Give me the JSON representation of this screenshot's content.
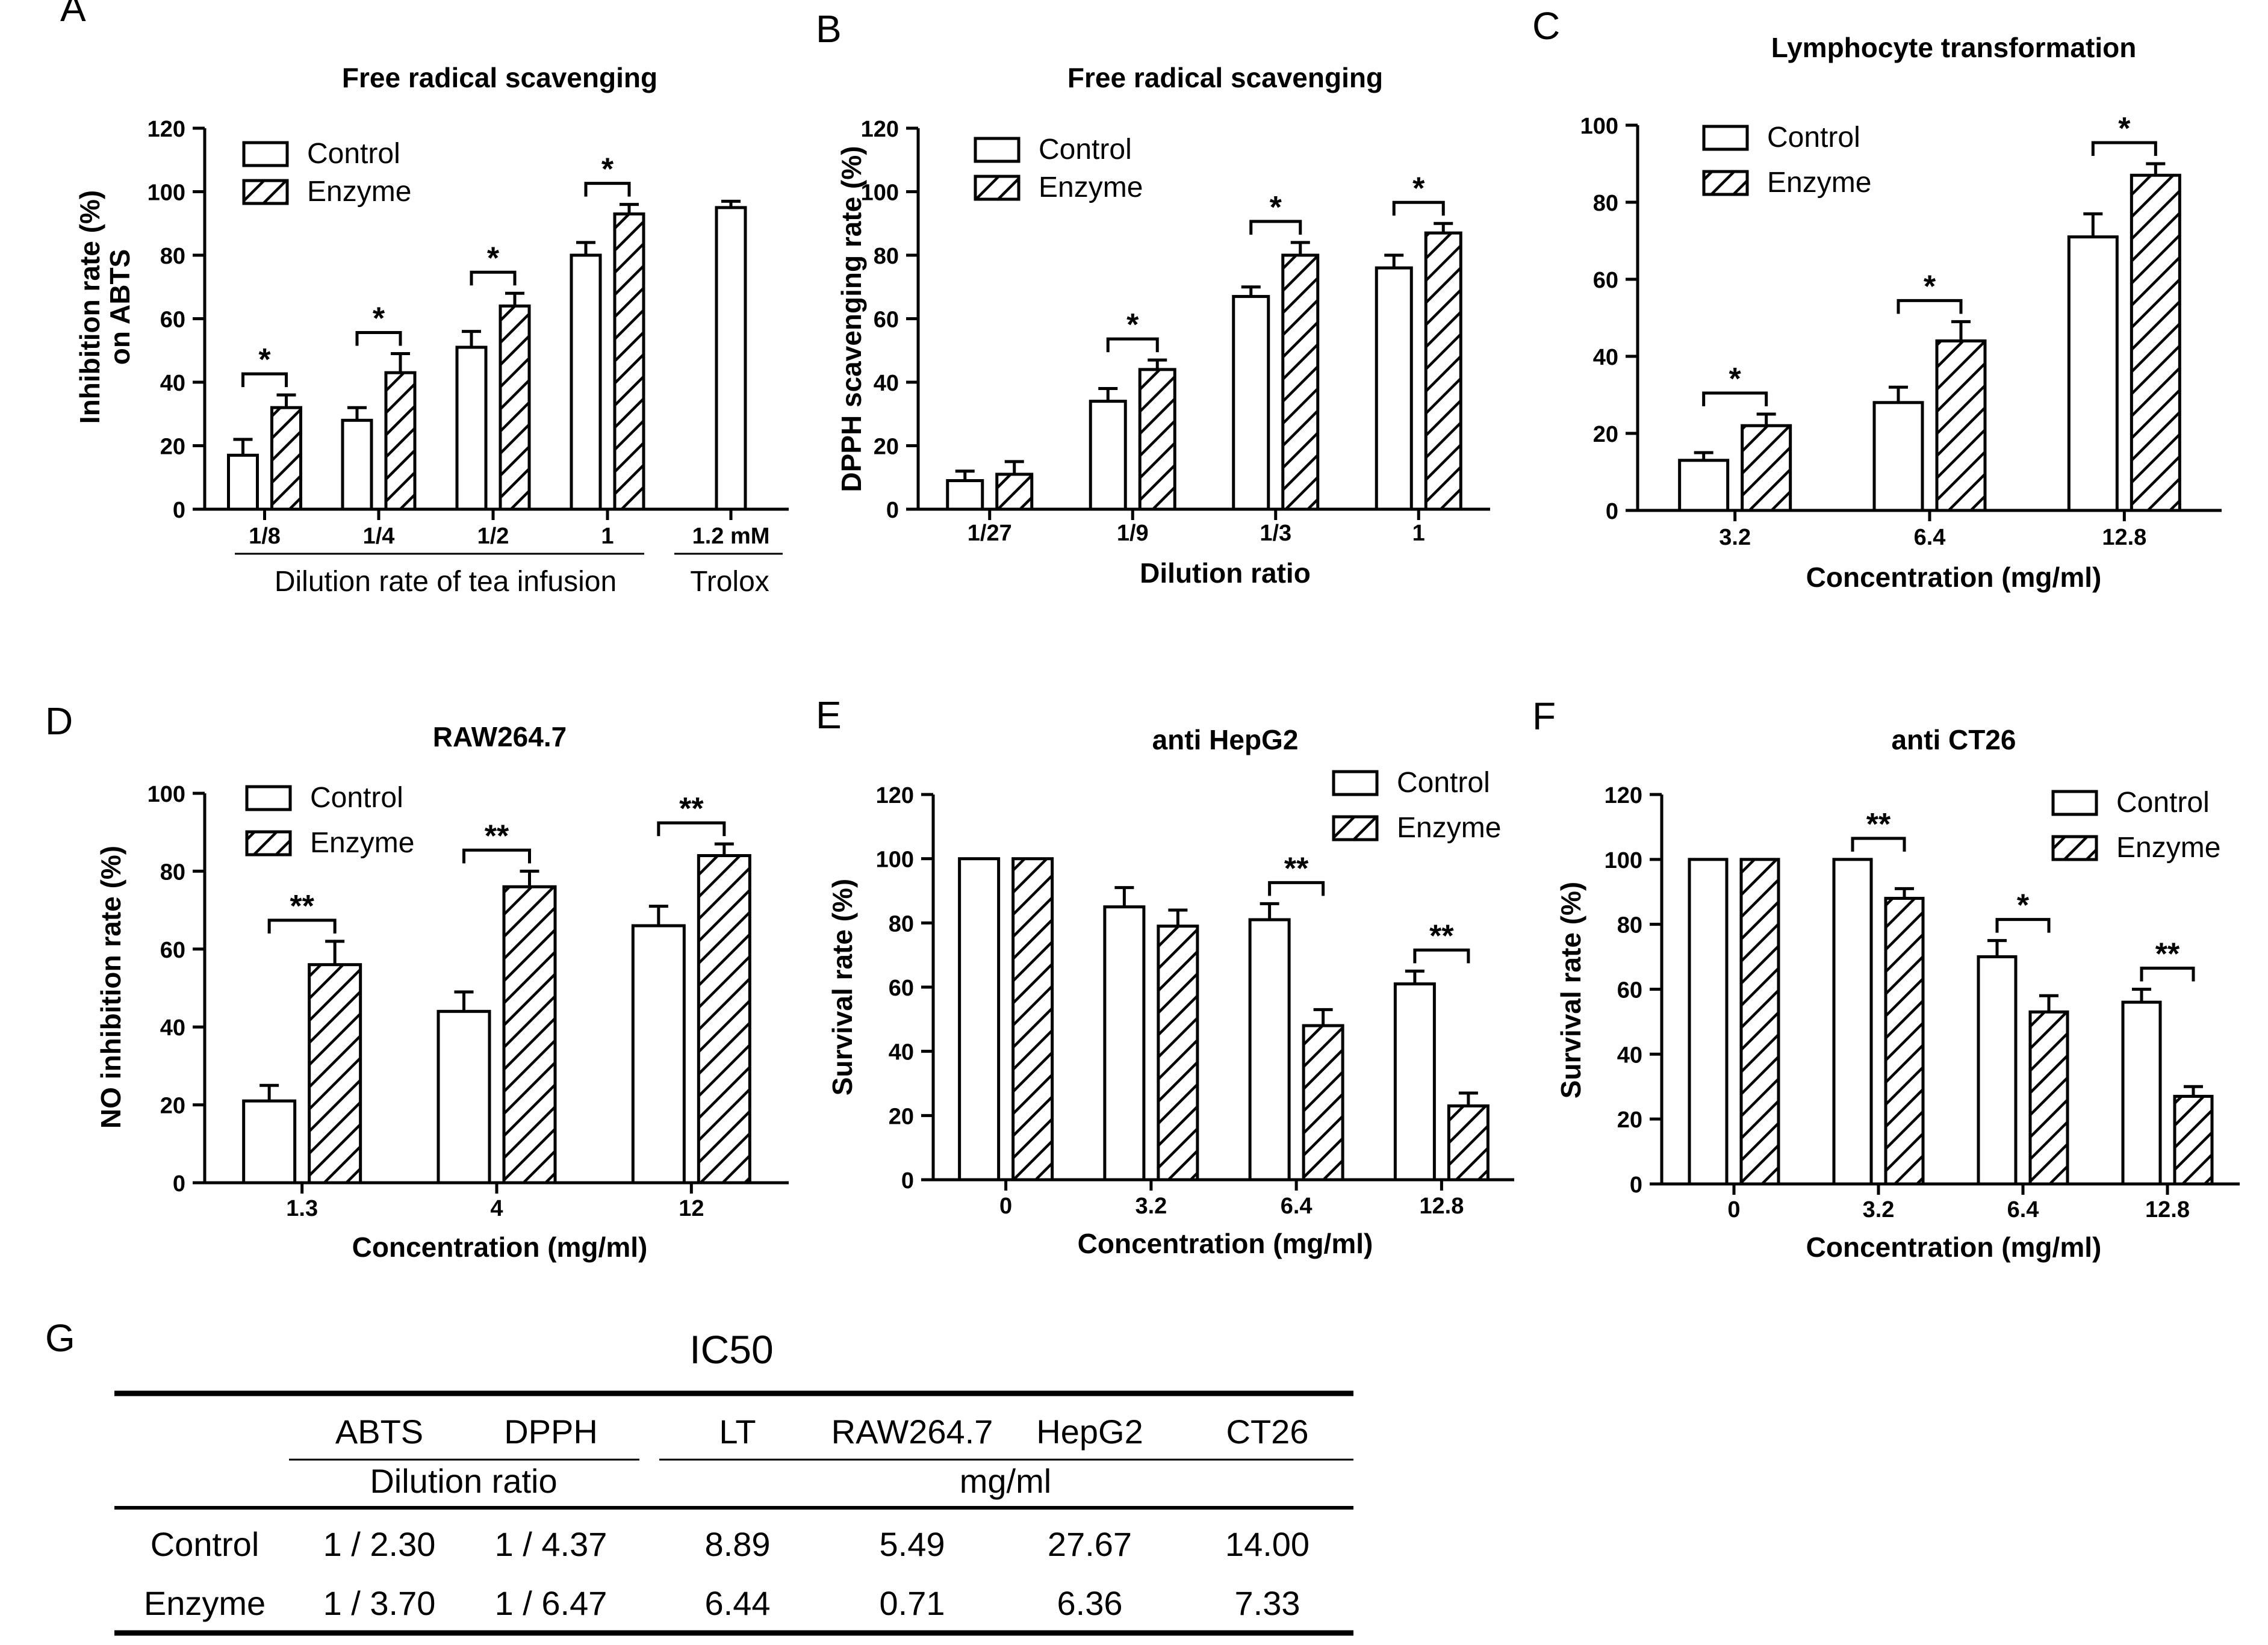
{
  "table": {
    "panel_label": "G",
    "title": "IC50",
    "columns": [
      "ABTS",
      "DPPH",
      "LT",
      "RAW264.7",
      "HepG2",
      "CT26"
    ],
    "group_labels": [
      "Dilution ratio",
      "mg/ml"
    ],
    "rows": [
      {
        "label": "Control",
        "values": [
          "1 / 2.30",
          "1 / 4.37",
          "8.89",
          "5.49",
          "27.67",
          "14.00"
        ]
      },
      {
        "label": "Enzyme",
        "values": [
          "1 / 3.70",
          "1 / 6.47",
          "6.44",
          "0.71",
          "6.36",
          "7.33"
        ]
      }
    ]
  },
  "chart_data": [
    {
      "panel": "A",
      "type": "bar",
      "title": "Free radical scavenging",
      "ylabel": "Inhibition rate (%)",
      "ylabel2": "on ABTS",
      "xlabel": "Dilution rate of tea infusion",
      "xlabel2": "Trolox",
      "categories": [
        "1/8",
        "1/4",
        "1/2",
        "1",
        "1.2 mM"
      ],
      "ylim": [
        0,
        120
      ],
      "yticks": [
        0,
        20,
        40,
        60,
        80,
        100,
        120
      ],
      "legend": "top-left",
      "series": [
        {
          "name": "Control",
          "values": [
            17,
            28,
            51,
            80,
            95
          ],
          "errors": [
            5,
            4,
            5,
            4,
            2
          ]
        },
        {
          "name": "Enzyme",
          "values": [
            32,
            43,
            64,
            93,
            null
          ],
          "errors": [
            4,
            6,
            4,
            3,
            null
          ]
        }
      ],
      "annotations": [
        "*",
        "*",
        "*",
        "*",
        ""
      ]
    },
    {
      "panel": "B",
      "type": "bar",
      "title": "Free radical scavenging",
      "ylabel": "DPPH scavenging rate (%)",
      "xlabel": "Dilution ratio",
      "categories": [
        "1/27",
        "1/9",
        "1/3",
        "1"
      ],
      "ylim": [
        0,
        120
      ],
      "yticks": [
        0,
        20,
        40,
        60,
        80,
        100,
        120
      ],
      "legend": "top-left",
      "series": [
        {
          "name": "Control",
          "values": [
            9,
            34,
            67,
            76
          ],
          "errors": [
            3,
            4,
            3,
            4
          ]
        },
        {
          "name": "Enzyme",
          "values": [
            11,
            44,
            80,
            87
          ],
          "errors": [
            4,
            3,
            4,
            3
          ]
        }
      ],
      "annotations": [
        "",
        "*",
        "*",
        "*"
      ]
    },
    {
      "panel": "C",
      "type": "bar",
      "title": "Lymphocyte transformation",
      "ylabel": "",
      "xlabel": "Concentration (mg/ml)",
      "categories": [
        "3.2",
        "6.4",
        "12.8"
      ],
      "ylim": [
        0,
        100
      ],
      "yticks": [
        0,
        20,
        40,
        60,
        80,
        100
      ],
      "legend": "top-left",
      "series": [
        {
          "name": "Control",
          "values": [
            13,
            28,
            71
          ],
          "errors": [
            2,
            4,
            6
          ]
        },
        {
          "name": "Enzyme",
          "values": [
            22,
            44,
            87
          ],
          "errors": [
            3,
            5,
            3
          ]
        }
      ],
      "annotations": [
        "*",
        "*",
        "*"
      ]
    },
    {
      "panel": "D",
      "type": "bar",
      "title": "RAW264.7",
      "ylabel": "NO inhibition rate (%)",
      "xlabel": "Concentration (mg/ml)",
      "categories": [
        "1.3",
        "4",
        "12"
      ],
      "ylim": [
        0,
        100
      ],
      "yticks": [
        0,
        20,
        40,
        60,
        80,
        100
      ],
      "legend": "top-left",
      "series": [
        {
          "name": "Control",
          "values": [
            21,
            44,
            66
          ],
          "errors": [
            4,
            5,
            5
          ]
        },
        {
          "name": "Enzyme",
          "values": [
            56,
            76,
            84
          ],
          "errors": [
            6,
            4,
            3
          ]
        }
      ],
      "annotations": [
        "**",
        "**",
        "**"
      ]
    },
    {
      "panel": "E",
      "type": "bar",
      "title": "anti HepG2",
      "ylabel": "Survival rate (%)",
      "xlabel": "Concentration (mg/ml)",
      "categories": [
        "0",
        "3.2",
        "6.4",
        "12.8"
      ],
      "ylim": [
        0,
        120
      ],
      "yticks": [
        0,
        20,
        40,
        60,
        80,
        100,
        120
      ],
      "legend": "top-right",
      "series": [
        {
          "name": "Control",
          "values": [
            100,
            85,
            81,
            61
          ],
          "errors": [
            0,
            6,
            5,
            4
          ]
        },
        {
          "name": "Enzyme",
          "values": [
            100,
            79,
            48,
            23
          ],
          "errors": [
            0,
            5,
            5,
            4
          ]
        }
      ],
      "annotations": [
        "",
        "",
        "**",
        "**"
      ]
    },
    {
      "panel": "F",
      "type": "bar",
      "title": "anti CT26",
      "ylabel": "Survival rate (%)",
      "xlabel": "Concentration (mg/ml)",
      "categories": [
        "0",
        "3.2",
        "6.4",
        "12.8"
      ],
      "ylim": [
        0,
        120
      ],
      "yticks": [
        0,
        20,
        40,
        60,
        80,
        100,
        120
      ],
      "legend": "top-right",
      "series": [
        {
          "name": "Control",
          "values": [
            100,
            100,
            70,
            56
          ],
          "errors": [
            0,
            0,
            5,
            4
          ]
        },
        {
          "name": "Enzyme",
          "values": [
            100,
            88,
            53,
            27
          ],
          "errors": [
            0,
            3,
            5,
            3
          ]
        }
      ],
      "annotations": [
        "",
        "**",
        "*",
        "**"
      ]
    }
  ]
}
